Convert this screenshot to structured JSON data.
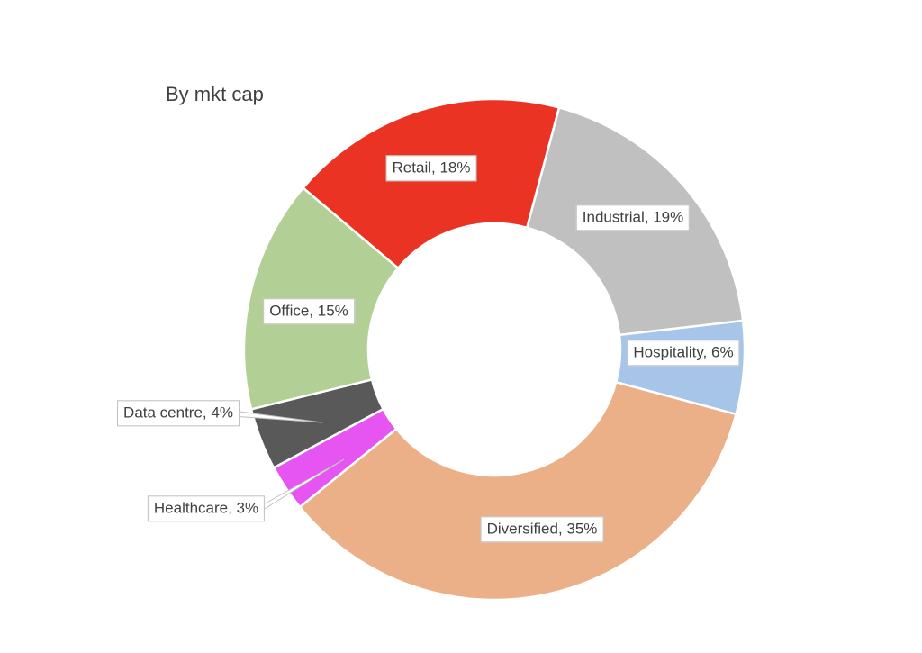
{
  "chart_data": {
    "type": "doughnut",
    "title": "By mkt cap",
    "label_separator": ", ",
    "start_angle_deg": 0,
    "direction": "clockwise",
    "legend": "none",
    "slices": [
      {
        "name": "Industrial",
        "value": 19,
        "value_label": "19%",
        "color": "#c0c0c0"
      },
      {
        "name": "Hospitality",
        "value": 6,
        "value_label": "6%",
        "color": "#a7c5e8"
      },
      {
        "name": "Diversified",
        "value": 35,
        "value_label": "35%",
        "color": "#ebb088"
      },
      {
        "name": "Healthcare",
        "value": 3,
        "value_label": "3%",
        "color": "#e655f2"
      },
      {
        "name": "Data centre",
        "value": 4,
        "value_label": "4%",
        "color": "#595959"
      },
      {
        "name": "Office",
        "value": 15,
        "value_label": "15%",
        "color": "#b2cf95"
      },
      {
        "name": "Retail",
        "value": 18,
        "value_label": "18%",
        "color": "#ea3323"
      }
    ]
  }
}
